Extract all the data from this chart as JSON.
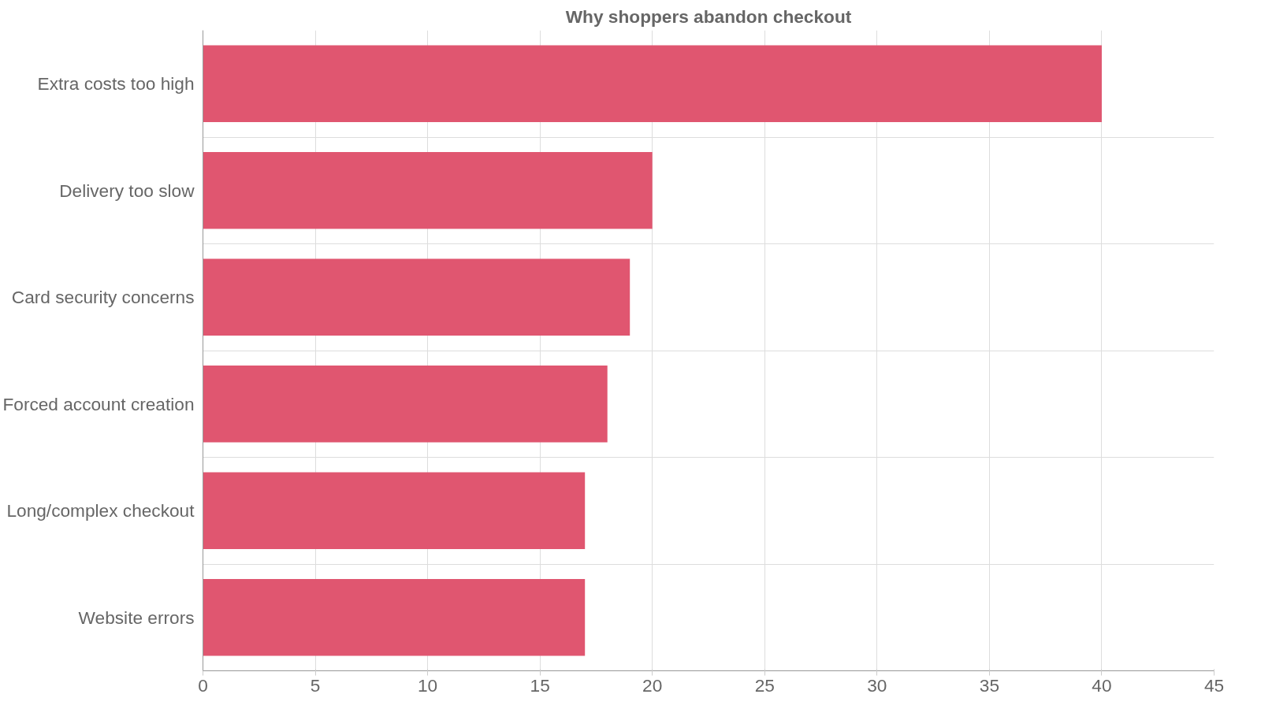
{
  "chart_data": {
    "type": "bar",
    "orientation": "horizontal",
    "title": "Why shoppers abandon checkout",
    "categories": [
      "Extra costs too high",
      "Delivery too slow",
      "Card security concerns",
      "Forced account creation",
      "Long/complex checkout",
      "Website errors"
    ],
    "values": [
      40,
      20,
      19,
      18,
      17,
      17
    ],
    "color": "#e05670",
    "xlim": [
      0,
      45
    ],
    "xticks": [
      0,
      5,
      10,
      15,
      20,
      25,
      30,
      35,
      40,
      45
    ],
    "grid": true
  }
}
